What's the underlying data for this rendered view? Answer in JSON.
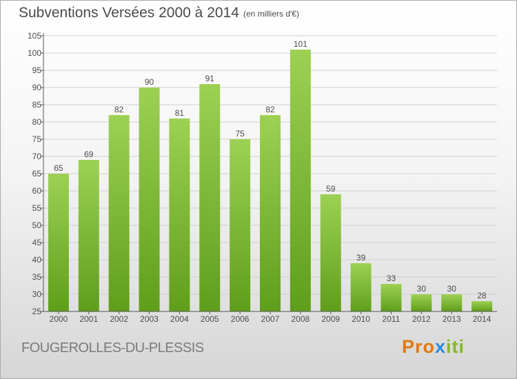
{
  "header": {
    "title": "Subventions Versées 2000 à 2014",
    "subtitle": "(en milliers d'€)"
  },
  "footer": {
    "place": "FOUGEROLLES-DU-PLESSIS",
    "logo": "Proxiti",
    "logo_parts": [
      "Pro",
      "x",
      "iti"
    ]
  },
  "colors": {
    "bar_light": "#9dd154",
    "bar_dark": "#5f9e1a",
    "axis": "#555555",
    "grid": "#d0d0d0",
    "text": "#4a4a4a"
  },
  "chart_data": {
    "type": "bar",
    "title": "Subventions Versées 2000 à 2014",
    "subtitle": "(en milliers d'€)",
    "xlabel": "",
    "ylabel": "",
    "categories": [
      "2000",
      "2001",
      "2002",
      "2003",
      "2004",
      "2005",
      "2006",
      "2007",
      "2008",
      "2009",
      "2010",
      "2011",
      "2012",
      "2013",
      "2014"
    ],
    "values": [
      65,
      69,
      82,
      90,
      81,
      91,
      75,
      82,
      101,
      59,
      39,
      33,
      30,
      30,
      28
    ],
    "ylim": [
      25,
      105
    ],
    "yticks": [
      25,
      30,
      35,
      40,
      45,
      50,
      55,
      60,
      65,
      70,
      75,
      80,
      85,
      90,
      95,
      100,
      105
    ],
    "grid": true,
    "data_labels": true
  }
}
